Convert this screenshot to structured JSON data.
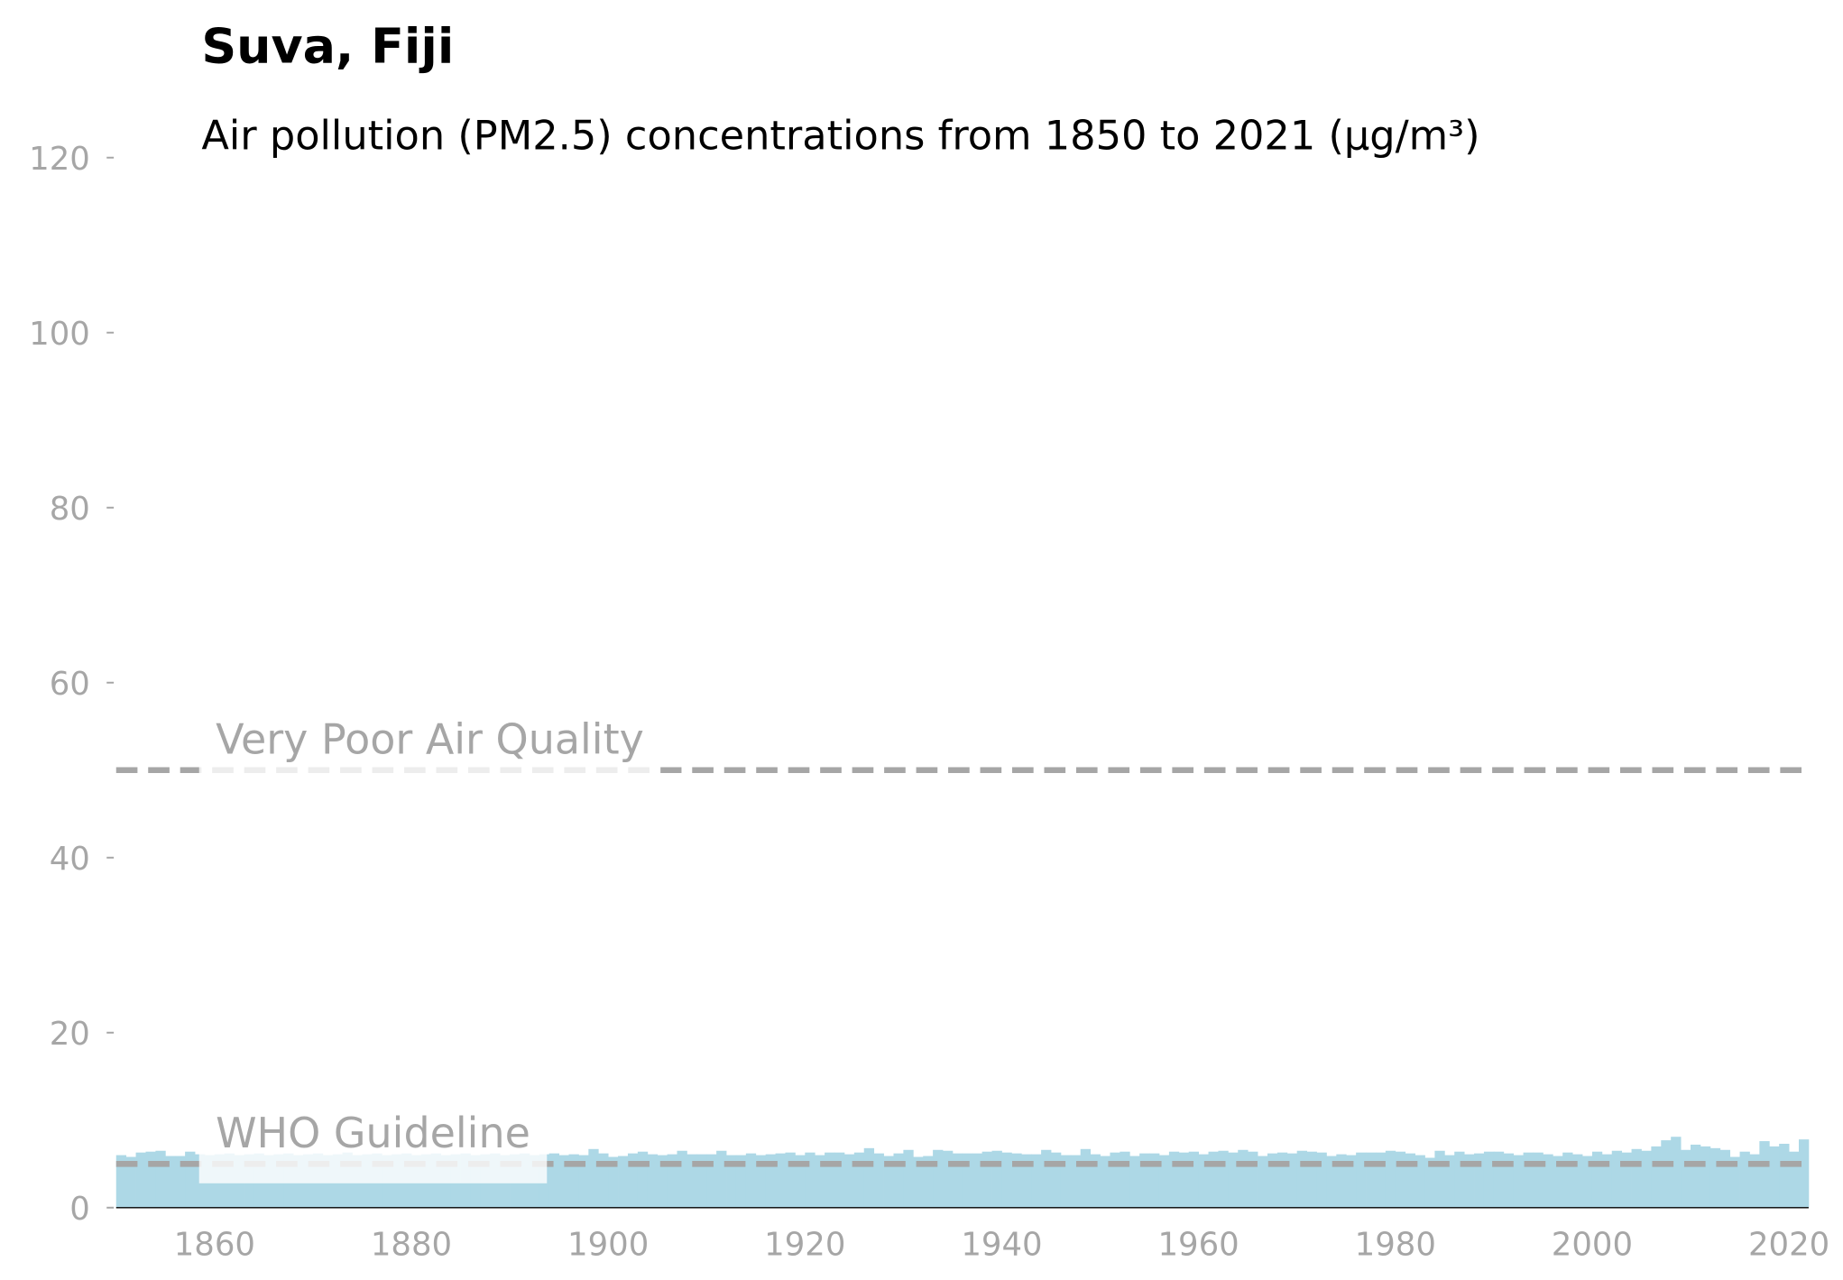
{
  "chart_data": {
    "type": "bar",
    "title": "Suva, Fiji",
    "subtitle": "Air pollution (PM2.5) concentrations from 1850 to 2021 (µg/m³)",
    "x": [
      1850,
      1851,
      1852,
      1853,
      1854,
      1855,
      1856,
      1857,
      1858,
      1859,
      1860,
      1861,
      1862,
      1863,
      1864,
      1865,
      1866,
      1867,
      1868,
      1869,
      1870,
      1871,
      1872,
      1873,
      1874,
      1875,
      1876,
      1877,
      1878,
      1879,
      1880,
      1881,
      1882,
      1883,
      1884,
      1885,
      1886,
      1887,
      1888,
      1889,
      1890,
      1891,
      1892,
      1893,
      1894,
      1895,
      1896,
      1897,
      1898,
      1899,
      1900,
      1901,
      1902,
      1903,
      1904,
      1905,
      1906,
      1907,
      1908,
      1909,
      1910,
      1911,
      1912,
      1913,
      1914,
      1915,
      1916,
      1917,
      1918,
      1919,
      1920,
      1921,
      1922,
      1923,
      1924,
      1925,
      1926,
      1927,
      1928,
      1929,
      1930,
      1931,
      1932,
      1933,
      1934,
      1935,
      1936,
      1937,
      1938,
      1939,
      1940,
      1941,
      1942,
      1943,
      1944,
      1945,
      1946,
      1947,
      1948,
      1949,
      1950,
      1951,
      1952,
      1953,
      1954,
      1955,
      1956,
      1957,
      1958,
      1959,
      1960,
      1961,
      1962,
      1963,
      1964,
      1965,
      1966,
      1967,
      1968,
      1969,
      1970,
      1971,
      1972,
      1973,
      1974,
      1975,
      1976,
      1977,
      1978,
      1979,
      1980,
      1981,
      1982,
      1983,
      1984,
      1985,
      1986,
      1987,
      1988,
      1989,
      1990,
      1991,
      1992,
      1993,
      1994,
      1995,
      1996,
      1997,
      1998,
      1999,
      2000,
      2001,
      2002,
      2003,
      2004,
      2005,
      2006,
      2007,
      2008,
      2009,
      2010,
      2011,
      2012,
      2013,
      2014,
      2015,
      2016,
      2017,
      2018,
      2019,
      2020,
      2021
    ],
    "values": [
      6.0,
      5.8,
      6.3,
      6.4,
      6.5,
      5.9,
      5.9,
      6.4,
      6.1,
      6.0,
      6.1,
      6.2,
      6.0,
      6.1,
      6.2,
      6.0,
      6.1,
      6.2,
      6.0,
      6.1,
      6.2,
      6.0,
      6.1,
      6.3,
      6.0,
      6.1,
      6.2,
      6.0,
      6.1,
      6.2,
      6.0,
      6.1,
      6.2,
      6.0,
      6.1,
      6.2,
      6.0,
      6.1,
      6.2,
      6.0,
      6.1,
      6.2,
      6.0,
      6.1,
      6.2,
      6.0,
      6.1,
      6.0,
      6.7,
      6.2,
      5.8,
      5.9,
      6.2,
      6.4,
      6.1,
      6.0,
      6.1,
      6.5,
      6.1,
      6.1,
      6.1,
      6.5,
      6.0,
      6.0,
      6.2,
      6.0,
      6.1,
      6.2,
      6.3,
      6.0,
      6.3,
      6.0,
      6.3,
      6.3,
      6.1,
      6.3,
      6.8,
      6.2,
      5.9,
      6.2,
      6.6,
      5.8,
      5.9,
      6.6,
      6.5,
      6.2,
      6.2,
      6.2,
      6.4,
      6.5,
      6.3,
      6.2,
      6.1,
      6.1,
      6.6,
      6.3,
      6.0,
      6.0,
      6.7,
      6.1,
      5.9,
      6.3,
      6.4,
      5.9,
      6.2,
      6.2,
      6.0,
      6.4,
      6.3,
      6.4,
      6.1,
      6.4,
      6.5,
      6.3,
      6.6,
      6.4,
      5.9,
      6.2,
      6.3,
      6.2,
      6.5,
      6.4,
      6.3,
      5.9,
      6.1,
      6.0,
      6.3,
      6.3,
      6.3,
      6.5,
      6.4,
      6.2,
      6.0,
      5.7,
      6.5,
      6.0,
      6.4,
      6.1,
      6.2,
      6.4,
      6.4,
      6.2,
      6.0,
      6.3,
      6.3,
      6.1,
      5.9,
      6.3,
      6.1,
      5.9,
      6.4,
      6.1,
      6.5,
      6.3,
      6.7,
      6.5,
      7.0,
      7.7,
      8.1,
      6.6,
      7.2,
      7.0,
      6.8,
      6.6,
      5.8,
      6.4,
      6.1,
      7.6,
      7.0,
      7.3,
      6.4,
      7.8
    ],
    "color": "#add8e6",
    "reference_lines": [
      {
        "value": 50,
        "label": "Very Poor Air Quality"
      },
      {
        "value": 5,
        "label": "WHO Guideline"
      }
    ],
    "reference_color": "#a6a6a6",
    "xlim": [
      1850,
      2022
    ],
    "xticks": [
      1860,
      1880,
      1900,
      1920,
      1940,
      1960,
      1980,
      2000,
      2020
    ],
    "ylim": [
      0,
      120
    ],
    "yticks": [
      0,
      20,
      40,
      60,
      80,
      100,
      120
    ],
    "grid": false
  }
}
